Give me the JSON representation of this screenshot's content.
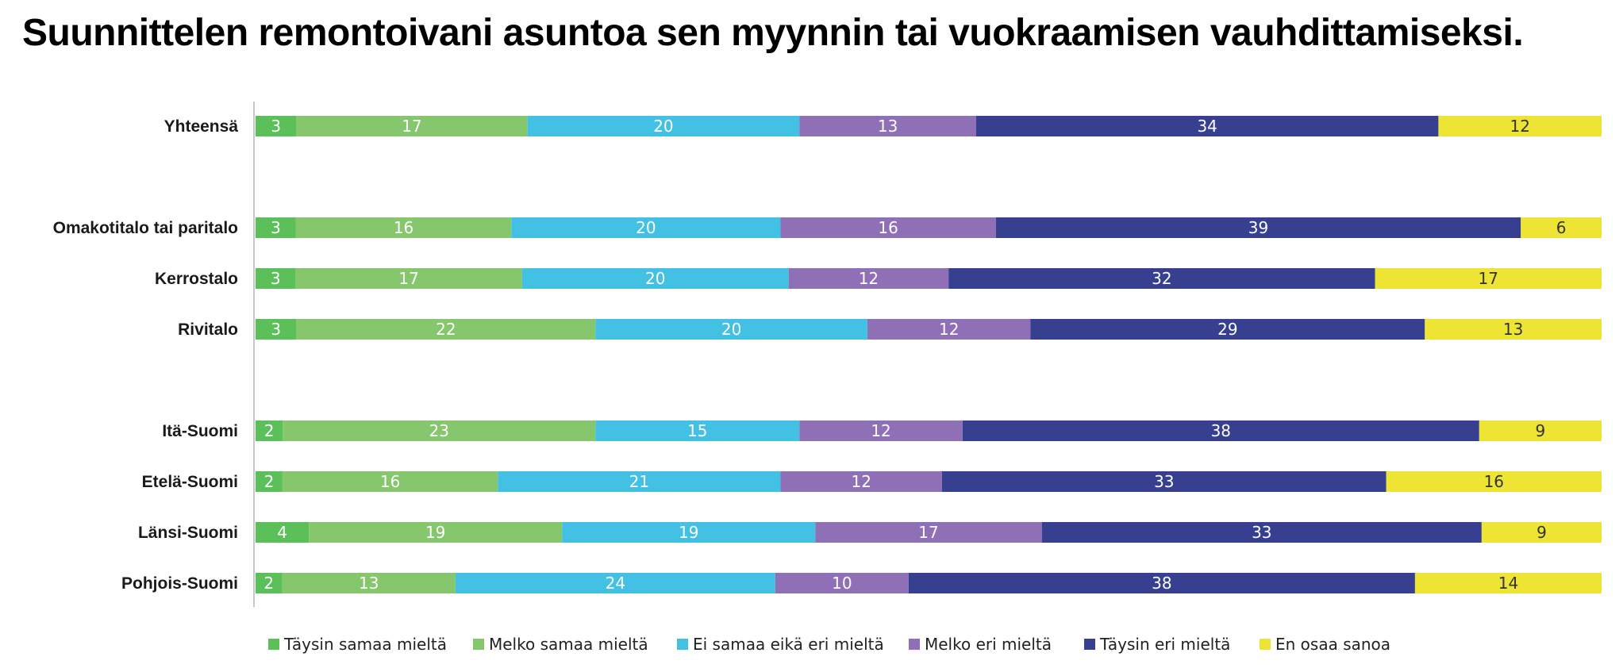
{
  "chart_data": {
    "type": "bar",
    "orientation": "horizontal",
    "stacked": true,
    "title": "Suunnittelen remontoivani asuntoa sen myynnin tai vuokraamisen vauhdittamiseksi.",
    "xlabel": "",
    "ylabel": "",
    "xlim": [
      0,
      100
    ],
    "grid": false,
    "legend_position": "bottom",
    "categories": [
      "Yhteensä",
      "Omakotitalo tai paritalo",
      "Kerrostalo",
      "Rivitalo",
      "Itä-Suomi",
      "Etelä-Suomi",
      "Länsi-Suomi",
      "Pohjois-Suomi"
    ],
    "groups": [
      [
        0
      ],
      [
        1,
        2,
        3
      ],
      [
        4,
        5,
        6,
        7
      ]
    ],
    "series": [
      {
        "name": "Täysin samaa mieltä",
        "color": "#5bbf5a",
        "label_color": "#ffffff",
        "values": [
          3,
          3,
          3,
          3,
          2,
          2,
          4,
          2
        ]
      },
      {
        "name": "Melko samaa mieltä",
        "color": "#86c66c",
        "label_color": "#ffffff",
        "values": [
          17,
          16,
          17,
          22,
          23,
          16,
          19,
          13
        ]
      },
      {
        "name": "Ei samaa eikä eri mieltä",
        "color": "#43c1e4",
        "label_color": "#ffffff",
        "values": [
          20,
          20,
          20,
          20,
          15,
          21,
          19,
          24
        ]
      },
      {
        "name": "Melko eri mieltä",
        "color": "#8f6fb5",
        "label_color": "#ffffff",
        "values": [
          13,
          16,
          12,
          12,
          12,
          12,
          17,
          10
        ]
      },
      {
        "name": "Täysin eri mieltä",
        "color": "#373f91",
        "label_color": "#ffffff",
        "values": [
          34,
          39,
          32,
          29,
          38,
          33,
          33,
          38
        ]
      },
      {
        "name": "En osaa sanoa",
        "color": "#ede433",
        "label_color": "#333333",
        "values": [
          12,
          6,
          17,
          13,
          9,
          16,
          9,
          14
        ]
      }
    ]
  }
}
